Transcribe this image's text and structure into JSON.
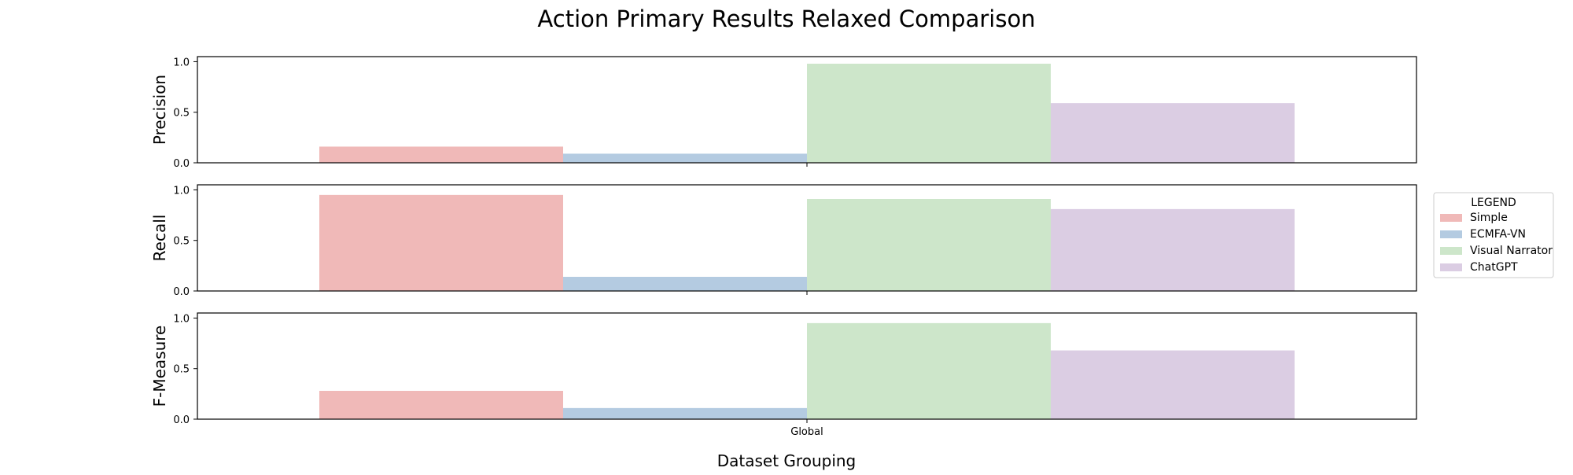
{
  "chart_data": {
    "type": "bar",
    "title": "Action Primary Results Relaxed Comparison",
    "xlabel": "Dataset Grouping",
    "categories": [
      "Global"
    ],
    "legend": {
      "title": "LEGEND",
      "placement": "right",
      "entries": [
        "Simple",
        "ECMFA-VN",
        "Visual Narrator",
        "ChatGPT"
      ]
    },
    "colors": [
      "#f0b9b8",
      "#b4cbe1",
      "#cde6ca",
      "#dbcde3"
    ],
    "grid": false,
    "subplots": [
      {
        "ylabel": "Precision",
        "ylim": [
          0,
          1.05
        ],
        "yticks": [
          "0.0",
          "0.5",
          "1.0"
        ],
        "series": [
          {
            "name": "Simple",
            "values": [
              0.16
            ]
          },
          {
            "name": "ECMFA-VN",
            "values": [
              0.09
            ]
          },
          {
            "name": "Visual Narrator",
            "values": [
              0.98
            ]
          },
          {
            "name": "ChatGPT",
            "values": [
              0.59
            ]
          }
        ]
      },
      {
        "ylabel": "Recall",
        "ylim": [
          0,
          1.05
        ],
        "yticks": [
          "0.0",
          "0.5",
          "1.0"
        ],
        "series": [
          {
            "name": "Simple",
            "values": [
              0.95
            ]
          },
          {
            "name": "ECMFA-VN",
            "values": [
              0.14
            ]
          },
          {
            "name": "Visual Narrator",
            "values": [
              0.91
            ]
          },
          {
            "name": "ChatGPT",
            "values": [
              0.81
            ]
          }
        ]
      },
      {
        "ylabel": "F-Measure",
        "ylim": [
          0,
          1.05
        ],
        "yticks": [
          "0.0",
          "0.5",
          "1.0"
        ],
        "series": [
          {
            "name": "Simple",
            "values": [
              0.28
            ]
          },
          {
            "name": "ECMFA-VN",
            "values": [
              0.11
            ]
          },
          {
            "name": "Visual Narrator",
            "values": [
              0.95
            ]
          },
          {
            "name": "ChatGPT",
            "values": [
              0.68
            ]
          }
        ]
      }
    ]
  }
}
